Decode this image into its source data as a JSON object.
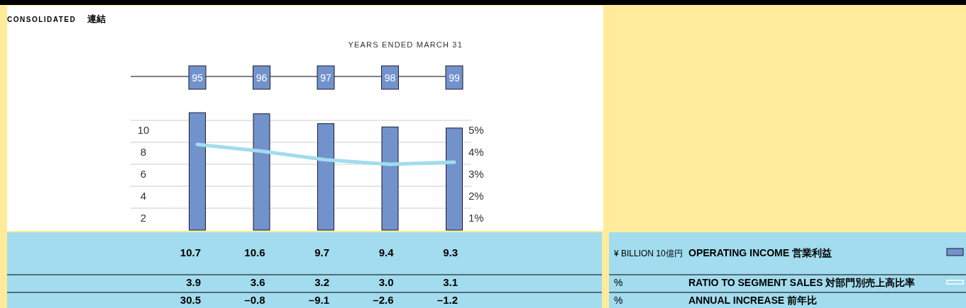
{
  "chart_data": {
    "type": "bar",
    "title": "CONSOLIDATED",
    "subtitle": "連結",
    "xlabel": "YEARS ENDED MARCH 31",
    "categories": [
      "95",
      "96",
      "97",
      "98",
      "99"
    ],
    "series": [
      {
        "name": "OPERATING INCOME 営業利益",
        "color": "#7292cc",
        "values": [
          10.7,
          10.6,
          9.7,
          9.4,
          9.3
        ],
        "value_labels": [
          "10.7",
          "10.6",
          "9.7",
          "9.4",
          "9.3"
        ]
      },
      {
        "name": "RATIO TO SEGMENT SALES 対部門別売上高比率",
        "type": "line",
        "axis": "y2",
        "color": "#a2dcee",
        "values": [
          3.9,
          3.6,
          3.2,
          3.0,
          3.1
        ],
        "value_labels": [
          "3.9",
          "3.6",
          "3.2",
          "3.0",
          "3.1"
        ]
      }
    ],
    "ylim": [
      0,
      14
    ],
    "yticks": [
      2,
      4,
      6,
      8,
      10
    ],
    "y2lim": [
      0,
      7
    ],
    "y2ticks": [
      {
        "value": 1,
        "label": "1%"
      },
      {
        "value": 2,
        "label": "2%"
      },
      {
        "value": 3,
        "label": "3%"
      },
      {
        "value": 4,
        "label": "4%"
      },
      {
        "value": 5,
        "label": "5%"
      }
    ],
    "grid": "y",
    "legend": "bottom right",
    "annotations": [
      "¥ BILLION 10億円",
      "%",
      "%",
      "ANNUAL INCREASE 前年比",
      "30.5",
      "–0.8",
      "–9.1",
      "–2.6",
      "–1.2"
    ]
  }
}
